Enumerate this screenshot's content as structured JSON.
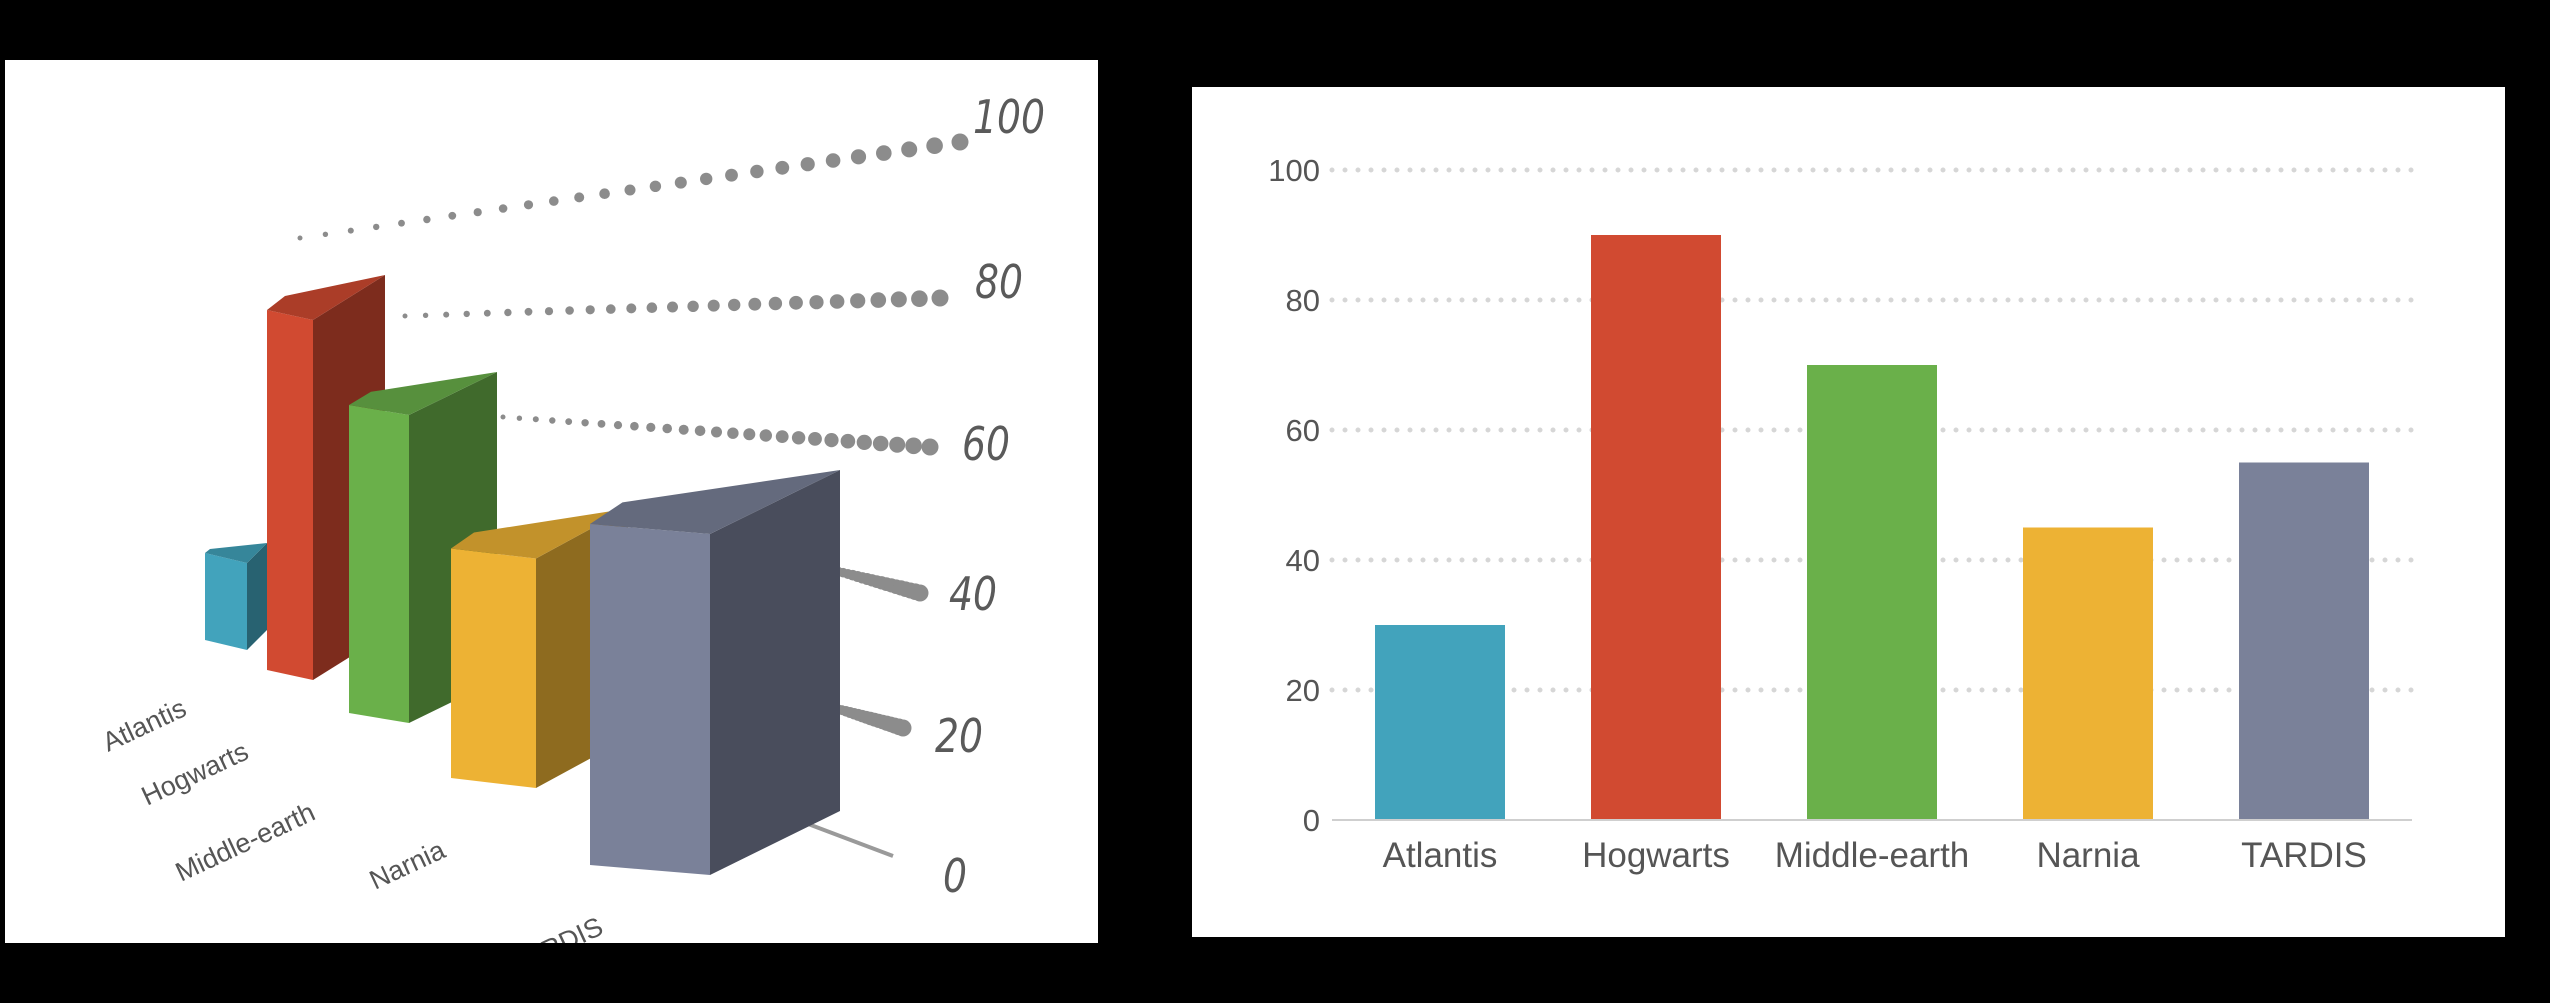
{
  "chart_data": [
    {
      "type": "bar",
      "style": "3d-perspective",
      "categories": [
        "Atlantis",
        "Hogwarts",
        "Middle-earth",
        "Narnia",
        "TARDIS"
      ],
      "values": [
        30,
        90,
        70,
        45,
        55
      ],
      "colors": [
        "#42a3bc",
        "#d14a31",
        "#6ab04a",
        "#edb234",
        "#7a8199"
      ],
      "yticks": [
        "0",
        "20",
        "40",
        "60",
        "80",
        "100"
      ],
      "ylim": [
        0,
        100
      ],
      "grid": "dotted",
      "title": "",
      "xlabel": "",
      "ylabel": ""
    },
    {
      "type": "bar",
      "categories": [
        "Atlantis",
        "Hogwarts",
        "Middle-earth",
        "Narnia",
        "TARDIS"
      ],
      "values": [
        30,
        90,
        70,
        45,
        55
      ],
      "colors": [
        "#42a3bc",
        "#d14a31",
        "#6ab04a",
        "#edb234",
        "#7a8199"
      ],
      "yticks": [
        "0",
        "20",
        "40",
        "60",
        "80",
        "100"
      ],
      "ylim": [
        0,
        100
      ],
      "grid": "dotted",
      "title": "",
      "xlabel": "",
      "ylabel": ""
    }
  ]
}
